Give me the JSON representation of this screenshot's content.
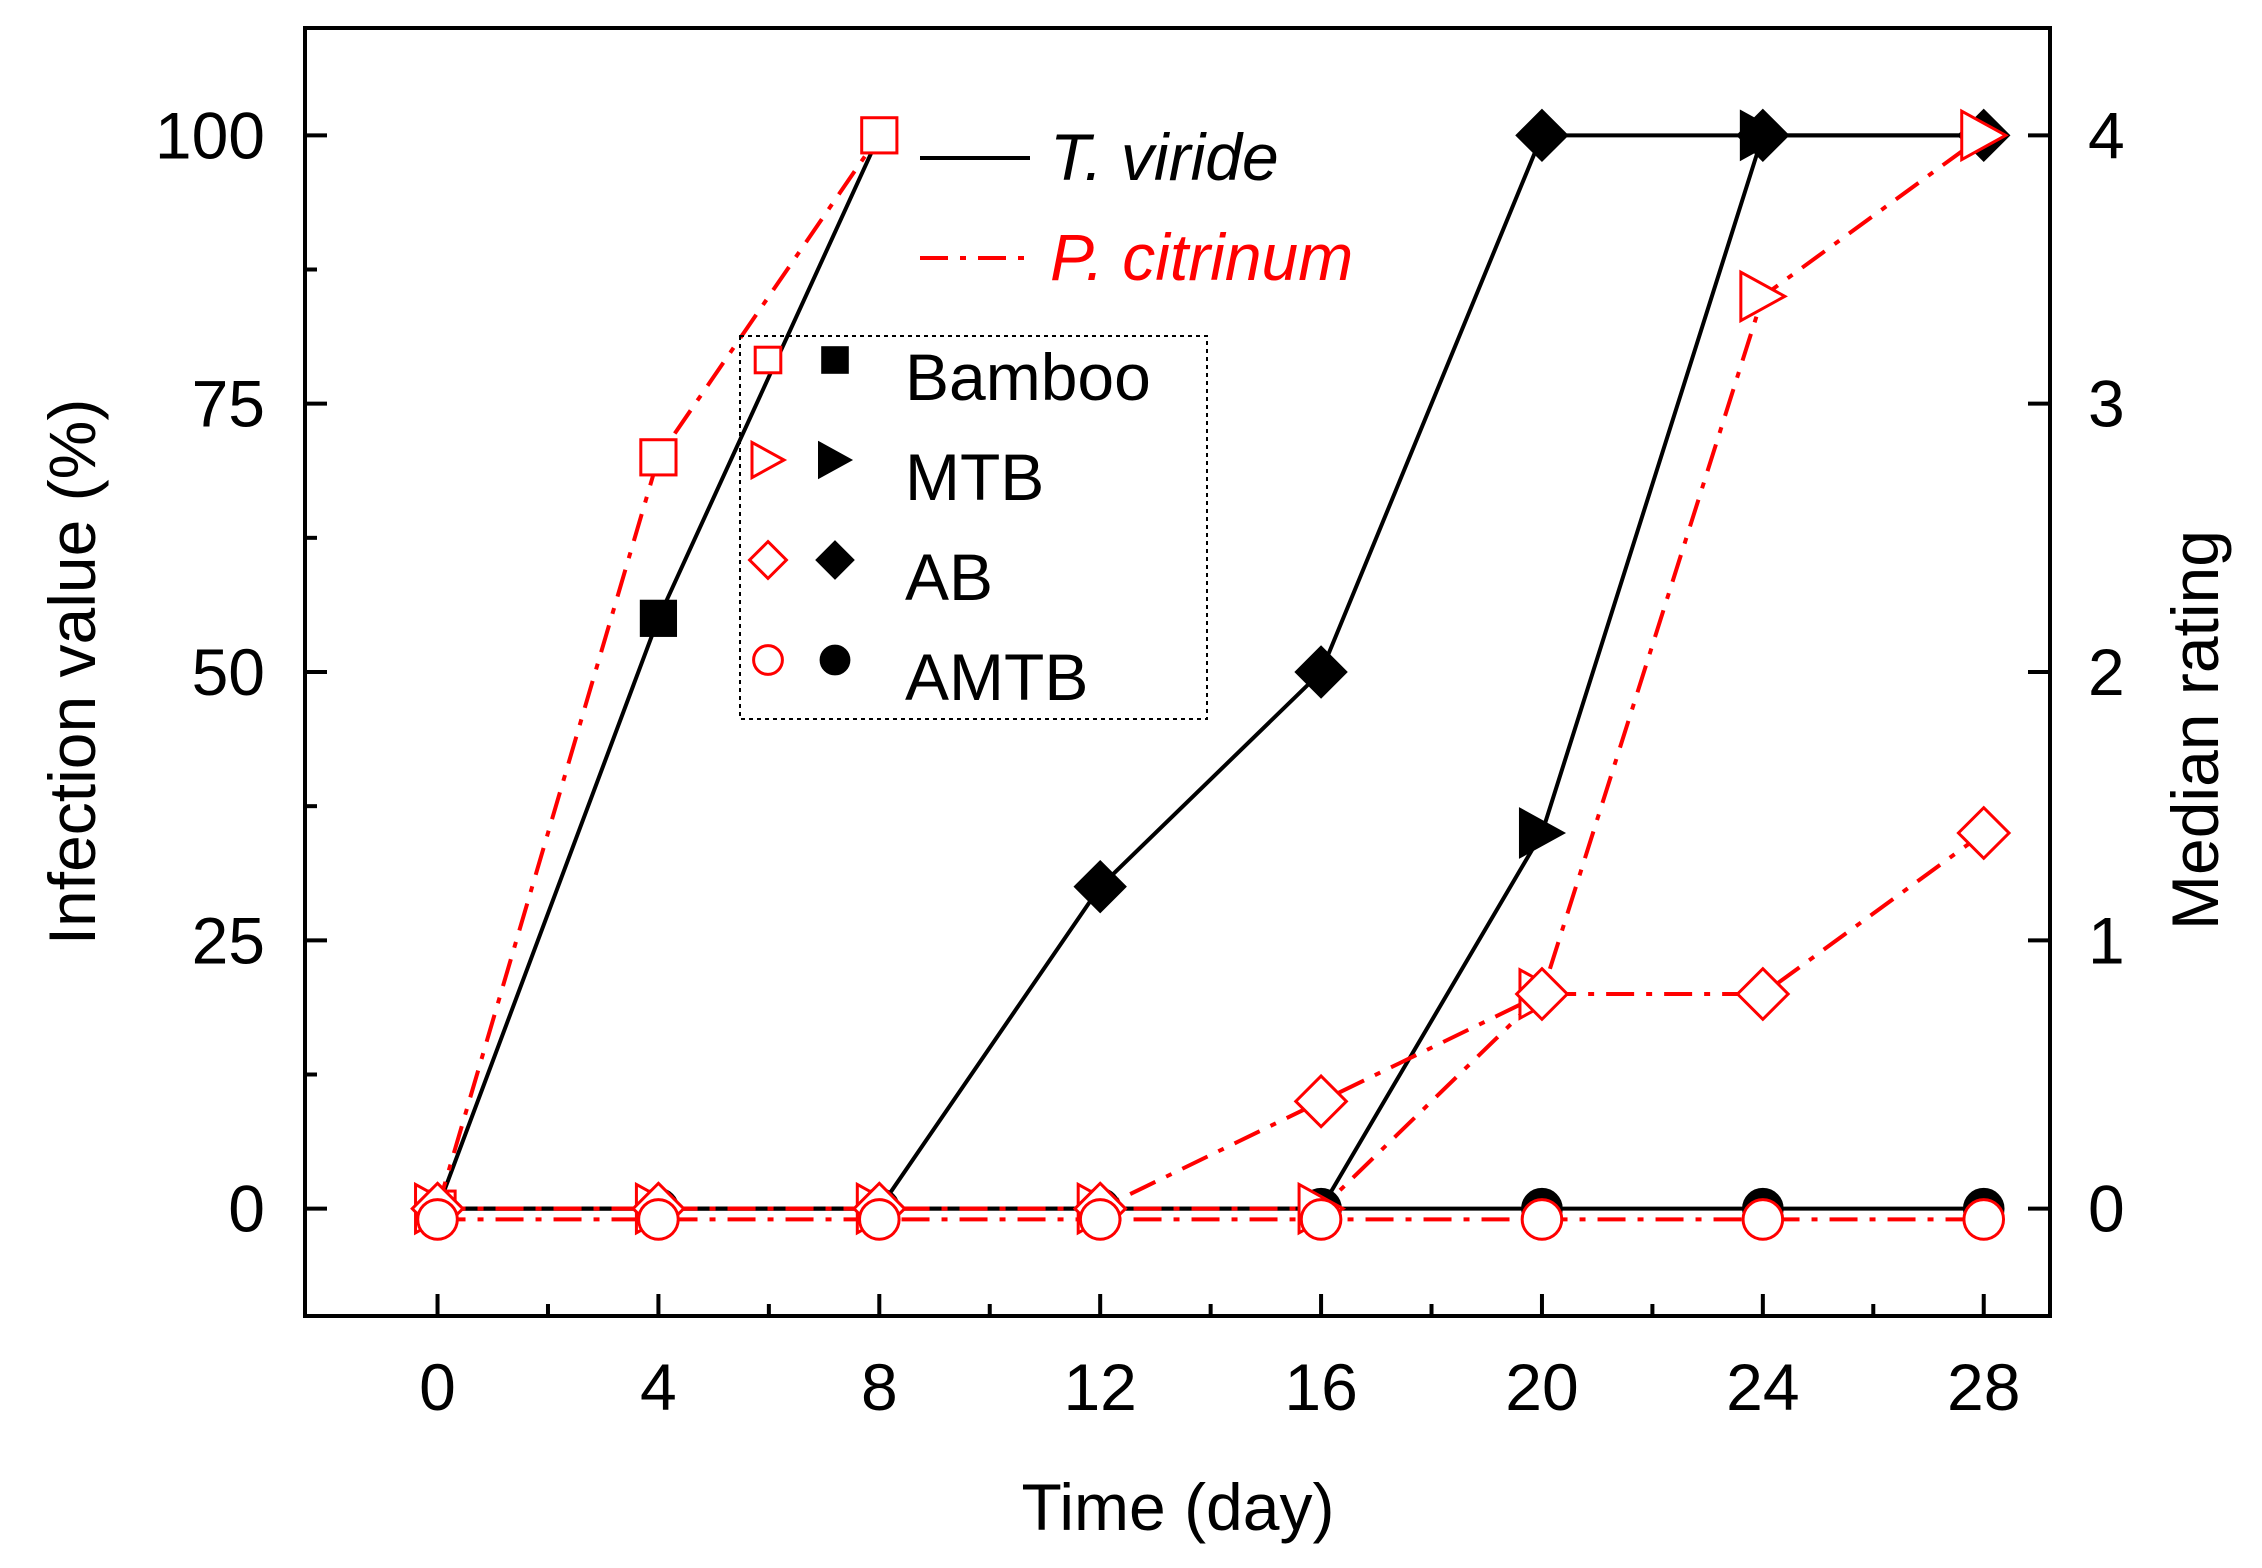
{
  "chart_data": {
    "type": "line",
    "xlabel": "Time (day)",
    "ylabel": "Infection value (%)",
    "y2label": "Median rating",
    "xlim": [
      -2.4,
      29.2
    ],
    "ylim": [
      -10,
      110
    ],
    "y2lim": [
      -0.4,
      4.4
    ],
    "xticks": [
      0,
      4,
      8,
      12,
      16,
      20,
      24,
      28
    ],
    "yticks": [
      0,
      25,
      50,
      75,
      100
    ],
    "y2ticks": [
      0,
      1,
      2,
      3,
      4
    ],
    "legend_fungi": [
      {
        "name": "T. viride",
        "style": "solid",
        "color": "#000000"
      },
      {
        "name": "P. citrinum",
        "style": "dash-dot",
        "color": "#ff0000"
      }
    ],
    "legend_materials": [
      {
        "name": "Bamboo",
        "marker": "square"
      },
      {
        "name": "MTB",
        "marker": "triangle-right"
      },
      {
        "name": "AB",
        "marker": "diamond"
      },
      {
        "name": "AMTB",
        "marker": "circle"
      }
    ],
    "series": [
      {
        "name": "T. viride - Bamboo",
        "fungus": "T. viride",
        "material": "Bamboo",
        "marker": "square",
        "filled": true,
        "color": "#000000",
        "x": [
          0,
          4,
          8
        ],
        "y": [
          0,
          55,
          100
        ]
      },
      {
        "name": "T. viride - AB",
        "fungus": "T. viride",
        "material": "AB",
        "marker": "diamond",
        "filled": true,
        "color": "#000000",
        "x": [
          0,
          4,
          8,
          12,
          16,
          20,
          24,
          28
        ],
        "y": [
          0,
          0,
          0,
          30,
          50,
          100,
          100,
          100
        ]
      },
      {
        "name": "T. viride - MTB",
        "fungus": "T. viride",
        "material": "MTB",
        "marker": "triangle-right",
        "filled": true,
        "color": "#000000",
        "x": [
          0,
          4,
          8,
          12,
          16,
          20,
          24,
          28
        ],
        "y": [
          0,
          0,
          0,
          0,
          0,
          35,
          100,
          100
        ]
      },
      {
        "name": "T. viride - AMTB",
        "fungus": "T. viride",
        "material": "AMTB",
        "marker": "circle",
        "filled": true,
        "color": "#000000",
        "x": [
          0,
          4,
          8,
          12,
          16,
          20,
          24,
          28
        ],
        "y": [
          0,
          0,
          0,
          0,
          0,
          0,
          0,
          0
        ]
      },
      {
        "name": "P. citrinum - Bamboo",
        "fungus": "P. citrinum",
        "material": "Bamboo",
        "marker": "square",
        "filled": false,
        "color": "#ff0000",
        "x": [
          0,
          4,
          8
        ],
        "y": [
          0,
          70,
          100
        ]
      },
      {
        "name": "P. citrinum - MTB",
        "fungus": "P. citrinum",
        "material": "MTB",
        "marker": "triangle-right",
        "filled": false,
        "color": "#ff0000",
        "x": [
          0,
          4,
          8,
          12,
          16,
          20,
          24,
          28
        ],
        "y": [
          0,
          0,
          0,
          0,
          0,
          20,
          85,
          100
        ]
      },
      {
        "name": "P. citrinum - AB",
        "fungus": "P. citrinum",
        "material": "AB",
        "marker": "diamond",
        "filled": false,
        "color": "#ff0000",
        "x": [
          0,
          4,
          8,
          12,
          16,
          20,
          24,
          28
        ],
        "y": [
          0,
          0,
          0,
          0,
          10,
          20,
          20,
          35
        ]
      },
      {
        "name": "P. citrinum - AMTB",
        "fungus": "P. citrinum",
        "material": "AMTB",
        "marker": "circle",
        "filled": false,
        "color": "#ff0000",
        "x": [
          0,
          4,
          8,
          12,
          16,
          20,
          24,
          28
        ],
        "y": [
          -1,
          -1,
          -1,
          -1,
          -1,
          -1,
          -1,
          -1
        ]
      }
    ]
  }
}
